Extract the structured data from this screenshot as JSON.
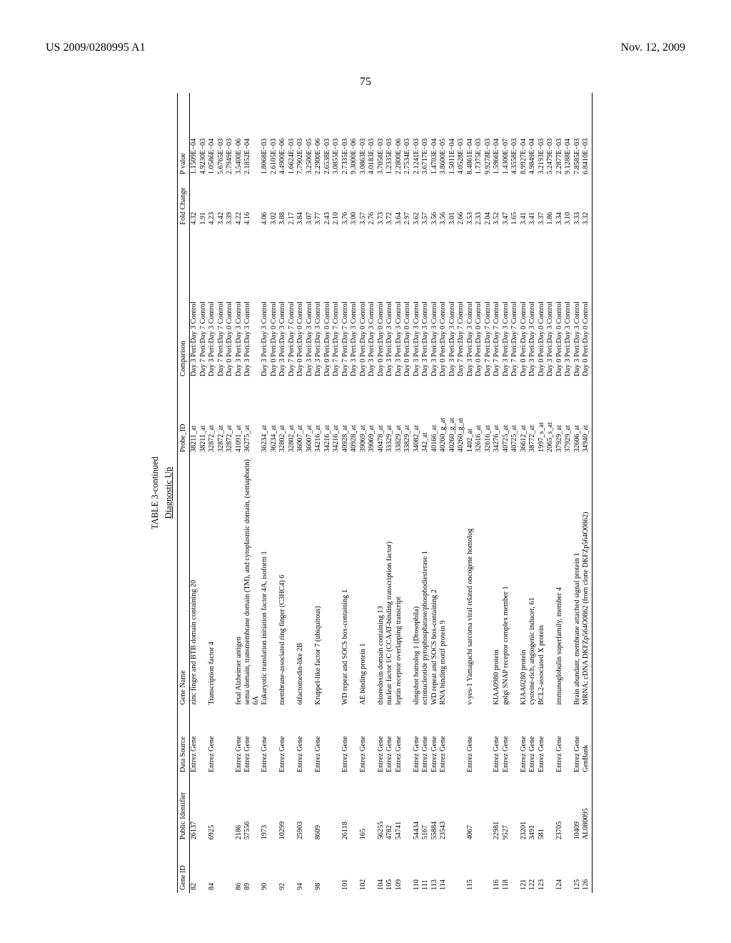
{
  "header": {
    "patent": "US 2009/0280995 A1",
    "date": "Nov. 12, 2009",
    "pagenum": "75"
  },
  "table": {
    "title": "TABLE 3-continued",
    "subtitle": "Diagnostic Up",
    "columns": [
      "Gene ID",
      "Public Identifier",
      "Data Source",
      "Gene Name",
      "Probe_ID",
      "Comparison",
      "Fold Change",
      "P value"
    ],
    "rows": [
      [
        "82",
        "26137",
        "Entrez Gene",
        "zinc finger and BTB domain containing 20",
        "38211_at",
        "Day 3 Peri:Day 3 Control",
        "4.32",
        "1.1509E−04"
      ],
      [
        "",
        "",
        "",
        "",
        "38211_at",
        "Day 7 Peri:Day 7 Control",
        "1.91",
        "4.9230E−03"
      ],
      [
        "84",
        "6925",
        "Entrez Gene",
        "Transcription factor 4",
        "32872_at",
        "Day 3 Peri:Day 3 Control",
        "4.23",
        "1.0586E−04"
      ],
      [
        "",
        "",
        "",
        "",
        "32872_at",
        "Day 7 Peri:Day 7 Control",
        "3.42",
        "5.6765E−03"
      ],
      [
        "",
        "",
        "",
        "",
        "32872_at",
        "Day 0 Peri:Day 0 Control",
        "3.39",
        "2.7949E−03"
      ],
      [
        "86",
        "2186",
        "Entrez Gene",
        "fetal Alzheimer antigen",
        "41091_at",
        "Day 3 Peri:Day 3 Control",
        "4.22",
        "3.5400E−06"
      ],
      [
        "89",
        "57556",
        "Entrez Gene",
        "sema domain, transmembrane domain (TM), and cytoplasmic domain, (semaphorin) 6A",
        "36275_at",
        "Day 3 Peri:Day 3 Control",
        "4.16",
        "2.1852E−04"
      ],
      [
        "90",
        "1973",
        "Entrez Gene",
        "Eukaryotic translation initiation factor 4A, isoform 1",
        "36234_at",
        "Day 3 Peri:Day 3 Control",
        "4.06",
        "1.8068E−03"
      ],
      [
        "",
        "",
        "",
        "",
        "36234_at",
        "Day 0 Peri:Day 0 Control",
        "3.02",
        "2.6105E−03"
      ],
      [
        "92",
        "10299",
        "Entrez Gene",
        "membrane-associated ring finger (C3HC4) 6",
        "32802_at",
        "Day 3 Peri:Day 3 Control",
        "3.88",
        "4.4900E−06"
      ],
      [
        "",
        "",
        "",
        "",
        "32802_at",
        "Day 7 Peri:Day 7 Control",
        "2.17",
        "1.6624E−03"
      ],
      [
        "94",
        "25903",
        "Entrez Gene",
        "olfactomedin-like 2B",
        "36007_at",
        "Day 0 Peri:Day 0 Control",
        "3.84",
        "7.7902E−03"
      ],
      [
        "",
        "",
        "",
        "",
        "36007_at",
        "Day 3 Peri:Day 3 Control",
        "3.07",
        "3.2500E−05"
      ],
      [
        "98",
        "8609",
        "Entrez Gene",
        "Kruppel-like factor 7 (ubiquitous)",
        "34216_at",
        "Day 3 Peri:Day 3 Control",
        "3.77",
        "2.2900E−06"
      ],
      [
        "",
        "",
        "",
        "",
        "34216_at",
        "Day 0 Peri:Day 0 Control",
        "2.43",
        "2.6538E−03"
      ],
      [
        "",
        "",
        "",
        "",
        "34216_at",
        "Day 7 Peri:Day 7 Control",
        "2.10",
        "3.0855E−03"
      ],
      [
        "101",
        "26118",
        "Entrez Gene",
        "WD repeat and SOCS box-containing 1",
        "40928_at",
        "Day 7 Peri:Day 7 Control",
        "3.76",
        "2.7335E−03"
      ],
      [
        "",
        "",
        "",
        "",
        "40928_at",
        "Day 3 Peri:Day 3 Control",
        "3.00",
        "9.3000E−06"
      ],
      [
        "102",
        "165",
        "Entrez Gene",
        "AE binding protein 1",
        "39069_at",
        "Day 0 Peri:Day 0 Control",
        "3.57",
        "3.0863E−03"
      ],
      [
        "",
        "",
        "",
        "",
        "39069_at",
        "Day 3 Peri:Day 3 Control",
        "2.76",
        "4.0183E−03"
      ],
      [
        "104",
        "56255",
        "Entrez Gene",
        "thioredoxin domain containing 13",
        "40478_at",
        "Day 0 Peri:Day 0 Control",
        "3.73",
        "3.7058E−03"
      ],
      [
        "105",
        "4782",
        "Entrez Gene",
        "nuclear factor I/C (CCAAT-binding transcription factor)",
        "33329_at",
        "Day 3 Peri:Day 3 Control",
        "3.72",
        "1.2335E−03"
      ],
      [
        "109",
        "54741",
        "Entrez Gene",
        "leptin receptor overlapping transcript",
        "33829_at",
        "Day 3 Peri:Day 3 Control",
        "3.64",
        "2.2800E−06"
      ],
      [
        "",
        "",
        "",
        "",
        "33829_at",
        "Day 0 Peri:Day 0 Control",
        "2.97",
        "2.7534E−03"
      ],
      [
        "110",
        "54434",
        "Entrez Gene",
        "slingshot homolog 1 (Drosophila)",
        "34082_at",
        "Day 3 Peri:Day 3 Control",
        "3.62",
        "2.1241E−03"
      ],
      [
        "111",
        "5167",
        "Entrez Gene",
        "ectonucleotide pyrophosphatase/phosphodiesterase 1",
        "342_at",
        "Day 3 Peri:Day 3 Control",
        "3.57",
        "3.6717E−03"
      ],
      [
        "113",
        "55884",
        "Entrez Gene",
        "WD repeat and SOCS box-containing 2",
        "40166_at",
        "Day 3 Peri:Day 3 Control",
        "3.56",
        "1.4703E−04"
      ],
      [
        "114",
        "23543",
        "Entrez Gene",
        "RNA binding motif protein 9",
        "40260_g_at",
        "Day 0 Peri:Day 0 Control",
        "3.56",
        "3.8600E−05"
      ],
      [
        "",
        "",
        "",
        "",
        "40260_g_at",
        "Day 3 Peri:Day 3 Control",
        "3.01",
        "1.5011E−04"
      ],
      [
        "",
        "",
        "",
        "",
        "40260_g_at",
        "Day 7 Peri:Day 7 Control",
        "2.66",
        "4.0528E−03"
      ],
      [
        "115",
        "4067",
        "Entrez Gene",
        "v-yes-1 Yamaguchi sarcoma viral related oncogene homolog",
        "1402_at",
        "Day 3 Peri:Day 3 Control",
        "3.53",
        "8.4861E−04"
      ],
      [
        "",
        "",
        "",
        "",
        "32616_at",
        "Day 0 Peri:Day 0 Control",
        "2.33",
        "1.7375E−03"
      ],
      [
        "",
        "",
        "",
        "",
        "32616_at",
        "Day 7 Peri:Day 7 Control",
        "2.04",
        "9.9278E−03"
      ],
      [
        "116",
        "22981",
        "Entrez Gene",
        "KIAA0980 protein",
        "34276_at",
        "Day 7 Peri:Day 7 Control",
        "3.52",
        "1.5966E−04"
      ],
      [
        "118",
        "9527",
        "Entrez Gene",
        "golgi SNAP receptor complex member 1",
        "40725_at",
        "Day 3 Peri:Day 3 Control",
        "3.47",
        "1.4300E−07"
      ],
      [
        "",
        "",
        "",
        "",
        "40725_at",
        "Day 7 Peri:Day 7 Control",
        "1.65",
        "4.3558E−03"
      ],
      [
        "121",
        "23201",
        "Entrez Gene",
        "KIAA0280 protein",
        "36612_at",
        "Day 0 Peri:Day 0 Control",
        "3.41",
        "8.9927E−04"
      ],
      [
        "122",
        "3491",
        "Entrez Gene",
        "cysteine-rich, angiogenic inducer, 61",
        "38772_at",
        "Day 3 Peri:Day 3 Control",
        "3.41",
        "4.9849E−04"
      ],
      [
        "123",
        "581",
        "Entrez Gene",
        "BCL2-associated X protein",
        "1997_s_at",
        "Day 0 Peri:Day 0 Control",
        "3.37",
        "3.2193E−03"
      ],
      [
        "",
        "",
        "",
        "",
        "2065_s_at",
        "Day 3 Peri:Day 3 Control",
        "1.86",
        "5.2479E−03"
      ],
      [
        "124",
        "23705",
        "Entrez Gene",
        "immunoglobulin superfamily, member 4",
        "37929_at",
        "Day 0 Peri:Day 0 Control",
        "3.34",
        "2.2877E−03"
      ],
      [
        "",
        "",
        "",
        "",
        "37929_at",
        "Day 3 Peri:Day 3 Control",
        "3.10",
        "9.1288E−04"
      ],
      [
        "125",
        "10409",
        "Entrez Gene",
        "Brain abundant, membrane attached signal protein 1",
        "32606_at",
        "Day 3 Peri:Day 3 Control",
        "3.33",
        "7.8585E−03"
      ],
      [
        "126",
        "AL080095",
        "GenBank",
        "MRNA; cDNA DKFZp564O0862 (from clone DKFZp564O0862)",
        "34940_at",
        "Day 0 Peri:Day 0 Control",
        "3.32",
        "6.8410E−03"
      ]
    ]
  }
}
